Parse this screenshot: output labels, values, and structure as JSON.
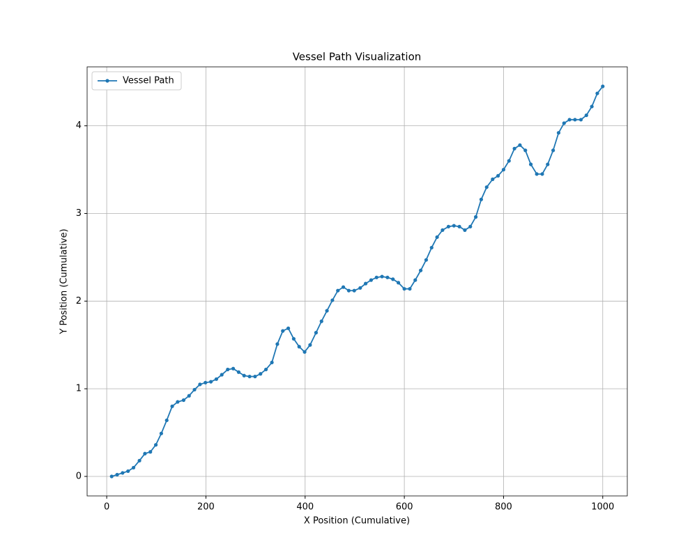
{
  "chart_data": {
    "type": "line",
    "title": "Vessel Path Visualization",
    "x_label": "X Position (Cumulative)",
    "y_label": "Y Position (Cumulative)",
    "x": [
      10,
      21,
      32,
      43,
      54,
      66,
      77,
      88,
      99,
      110,
      121,
      132,
      143,
      155,
      166,
      177,
      188,
      199,
      210,
      221,
      232,
      244,
      255,
      266,
      277,
      288,
      299,
      310,
      321,
      333,
      344,
      355,
      366,
      377,
      388,
      399,
      410,
      422,
      433,
      444,
      455,
      466,
      477,
      488,
      499,
      511,
      522,
      533,
      544,
      555,
      566,
      577,
      588,
      600,
      611,
      622,
      633,
      644,
      655,
      666,
      677,
      689,
      700,
      711,
      722,
      733,
      744,
      755,
      766,
      778,
      789,
      800,
      811,
      822,
      833,
      844,
      855,
      867,
      878,
      889,
      900,
      911,
      922,
      933,
      944,
      956,
      967,
      978,
      989,
      1000
    ],
    "series": [
      {
        "name": "Vessel Path",
        "color": "#1f77b4",
        "values": [
          0,
          0.02,
          0.04,
          0.06,
          0.1,
          0.18,
          0.26,
          0.28,
          0.36,
          0.49,
          0.64,
          0.8,
          0.85,
          0.87,
          0.92,
          0.99,
          1.05,
          1.07,
          1.08,
          1.11,
          1.16,
          1.22,
          1.23,
          1.19,
          1.15,
          1.14,
          1.14,
          1.17,
          1.22,
          1.3,
          1.51,
          1.66,
          1.69,
          1.57,
          1.48,
          1.42,
          1.5,
          1.64,
          1.77,
          1.89,
          2.01,
          2.12,
          2.16,
          2.12,
          2.12,
          2.15,
          2.2,
          2.24,
          2.27,
          2.28,
          2.27,
          2.25,
          2.21,
          2.14,
          2.14,
          2.24,
          2.35,
          2.47,
          2.61,
          2.73,
          2.81,
          2.85,
          2.86,
          2.85,
          2.81,
          2.85,
          2.96,
          3.16,
          3.3,
          3.39,
          3.43,
          3.5,
          3.6,
          3.74,
          3.78,
          3.72,
          3.56,
          3.45,
          3.45,
          3.56,
          3.72,
          3.92,
          4.03,
          4.07,
          4.07,
          4.07,
          4.12,
          4.22,
          4.37,
          4.45
        ]
      }
    ],
    "xlim": [
      -39.5,
      1049.5
    ],
    "ylim": [
      -0.2225,
      4.6725
    ],
    "xticks": [
      0,
      200,
      400,
      600,
      800,
      1000
    ],
    "yticks": [
      0,
      1,
      2,
      3,
      4
    ],
    "grid": true,
    "legend": "upper-left"
  }
}
